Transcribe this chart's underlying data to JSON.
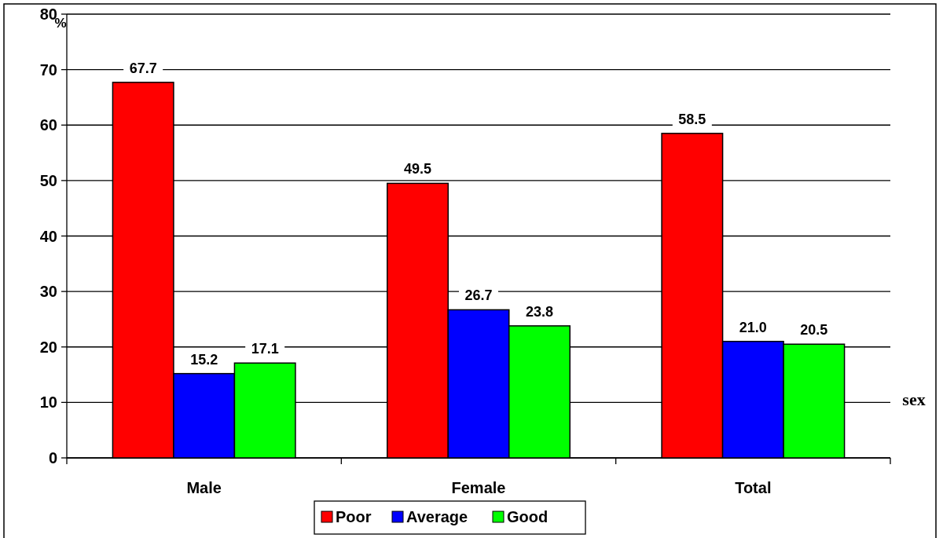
{
  "chart_data": {
    "type": "bar",
    "ylabel": "%",
    "xlabel": "sex",
    "categories": [
      "Male",
      "Female",
      "Total"
    ],
    "series": [
      {
        "name": "Poor",
        "color": "#ff0000",
        "values": [
          67.7,
          49.5,
          58.5
        ]
      },
      {
        "name": "Average",
        "color": "#0000ff",
        "values": [
          15.2,
          26.7,
          21.0
        ]
      },
      {
        "name": "Good",
        "color": "#00ff00",
        "values": [
          17.1,
          23.8,
          20.5
        ]
      }
    ],
    "value_labels": [
      [
        "67.7",
        "49.5",
        "58.5"
      ],
      [
        "15.2",
        "26.7",
        "21.0"
      ],
      [
        "17.1",
        "23.8",
        "20.5"
      ]
    ],
    "ylim": [
      0,
      80
    ],
    "yticks": [
      0,
      10,
      20,
      30,
      40,
      50,
      60,
      70,
      80
    ],
    "grid": "y",
    "legend": "bottom"
  }
}
